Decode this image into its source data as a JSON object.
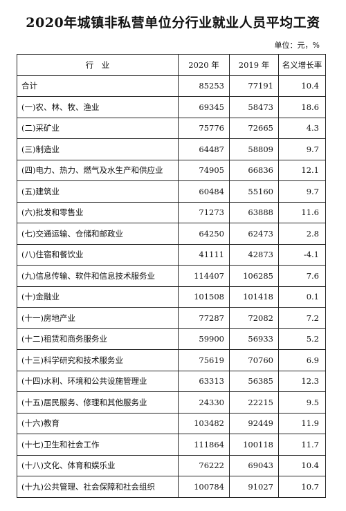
{
  "title": "2020年城镇非私营单位分行业就业人员平均工资",
  "unit": "单位：元，%",
  "headers": [
    "行　业",
    "2020 年",
    "2019 年",
    "名义增长率"
  ],
  "rows": [
    {
      "name": "合计",
      "y2020": "85253",
      "y2019": "77191",
      "growth": "10.4"
    },
    {
      "name": "(一)农、林、牧、渔业",
      "y2020": "69345",
      "y2019": "58473",
      "growth": "18.6"
    },
    {
      "name": "(二)采矿业",
      "y2020": "75776",
      "y2019": "72665",
      "growth": "4.3"
    },
    {
      "name": "(三)制造业",
      "y2020": "64487",
      "y2019": "58809",
      "growth": "9.7"
    },
    {
      "name": "(四)电力、热力、燃气及水生产和供应业",
      "y2020": "74905",
      "y2019": "66836",
      "growth": "12.1"
    },
    {
      "name": "(五)建筑业",
      "y2020": "60484",
      "y2019": "55160",
      "growth": "9.7"
    },
    {
      "name": "(六)批发和零售业",
      "y2020": "71273",
      "y2019": "63888",
      "growth": "11.6"
    },
    {
      "name": "(七)交通运输、仓储和邮政业",
      "y2020": "64250",
      "y2019": "62473",
      "growth": "2.8"
    },
    {
      "name": "(八)住宿和餐饮业",
      "y2020": "41111",
      "y2019": "42873",
      "growth": "-4.1"
    },
    {
      "name": "(九)信息传输、软件和信息技术服务业",
      "y2020": "114407",
      "y2019": "106285",
      "growth": "7.6"
    },
    {
      "name": "(十)金融业",
      "y2020": "101508",
      "y2019": "101418",
      "growth": "0.1"
    },
    {
      "name": "(十一)房地产业",
      "y2020": "77287",
      "y2019": "72082",
      "growth": "7.2"
    },
    {
      "name": "(十二)租赁和商务服务业",
      "y2020": "59900",
      "y2019": "56933",
      "growth": "5.2"
    },
    {
      "name": "(十三)科学研究和技术服务业",
      "y2020": "75619",
      "y2019": "70760",
      "growth": "6.9"
    },
    {
      "name": "(十四)水利、环境和公共设施管理业",
      "y2020": "63313",
      "y2019": "56385",
      "growth": "12.3"
    },
    {
      "name": "(十五)居民服务、修理和其他服务业",
      "y2020": "24330",
      "y2019": "22215",
      "growth": "9.5"
    },
    {
      "name": "(十六)教育",
      "y2020": "103482",
      "y2019": "92449",
      "growth": "11.9"
    },
    {
      "name": "(十七)卫生和社会工作",
      "y2020": "111864",
      "y2019": "100118",
      "growth": "11.7"
    },
    {
      "name": "(十八)文化、体育和娱乐业",
      "y2020": "76222",
      "y2019": "69043",
      "growth": "10.4"
    },
    {
      "name": "(十九)公共管理、社会保障和社会组织",
      "y2020": "100784",
      "y2019": "91027",
      "growth": "10.7"
    }
  ]
}
